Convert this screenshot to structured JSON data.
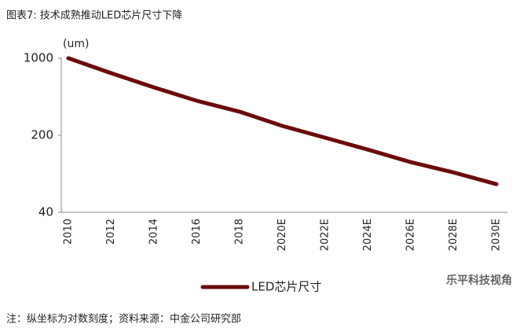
{
  "chart_data": {
    "type": "line",
    "title": "图表7: 技术成熟推动LED芯片尺寸下降",
    "unit_label": "(um)",
    "categories": [
      "2010",
      "2012",
      "2014",
      "2016",
      "2018",
      "2020E",
      "2022E",
      "2024E",
      "2026E",
      "2028E",
      "2030E"
    ],
    "series": [
      {
        "name": "LED芯片尺寸",
        "color": "#6b0b0b",
        "values": [
          1000,
          732,
          544,
          411,
          327,
          243,
          190,
          148,
          114,
          92,
          72
        ]
      }
    ],
    "ylim": [
      40,
      1000
    ],
    "yticks": [
      40,
      200,
      1000
    ],
    "log_scale": true,
    "grid": false,
    "legend": "bottom",
    "note": "注：纵坐标为对数刻度；资料来源：中金公司研究部",
    "watermark": "乐平科技视角"
  }
}
